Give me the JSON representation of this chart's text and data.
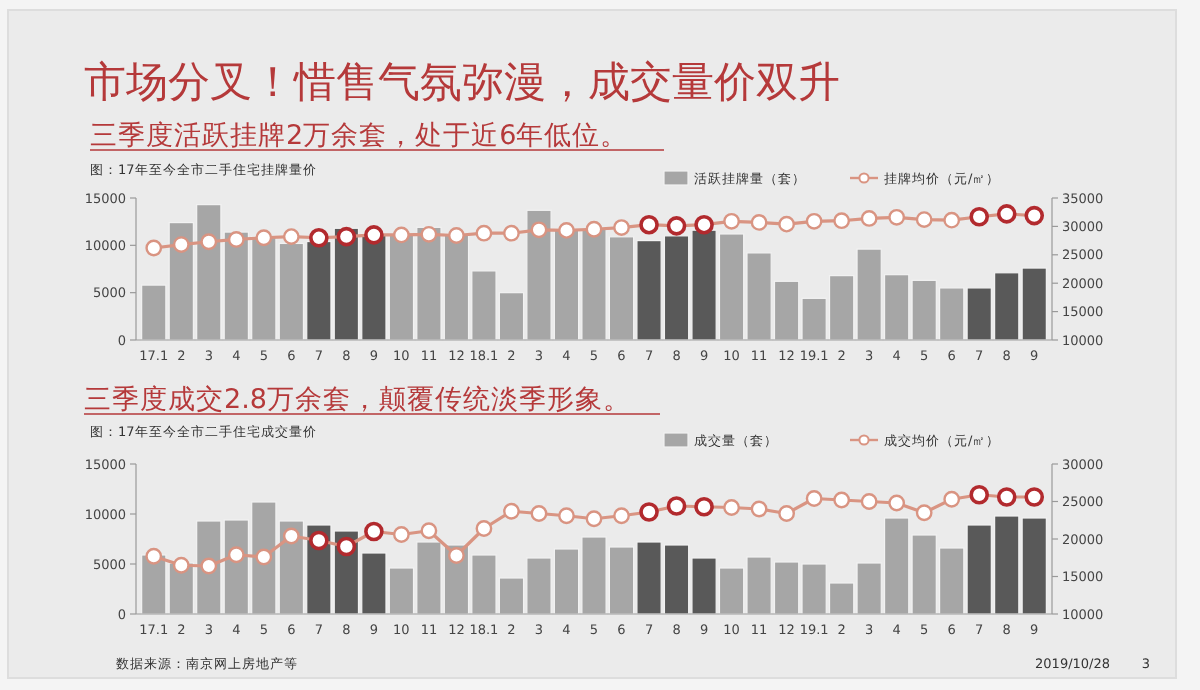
{
  "chart_data": [
    {
      "type": "bar",
      "title": "市场分叉！惜售气氛弥漫，成交量价双升",
      "subtitle": "三季度活跃挂牌2万余套，处于近6年低位。",
      "annotations": [
        "图：17年至今全市二手住宅挂牌量价"
      ],
      "categories": [
        "17.1",
        "2",
        "3",
        "4",
        "5",
        "6",
        "7",
        "8",
        "9",
        "10",
        "11",
        "12",
        "18.1",
        "2",
        "3",
        "4",
        "5",
        "6",
        "7",
        "8",
        "9",
        "10",
        "11",
        "12",
        "19.1",
        "2",
        "3",
        "4",
        "5",
        "6",
        "7",
        "8",
        "9"
      ],
      "ylim": [
        0,
        15000
      ],
      "yticks": [
        0,
        5000,
        10000,
        15000
      ],
      "y2lim": [
        10000,
        35000
      ],
      "y2ticks": [
        10000,
        15000,
        20000,
        25000,
        30000,
        35000
      ],
      "legend": "top right",
      "marker": "circle",
      "series": [
        {
          "name": "活跃挂牌量（套）",
          "color": "#a6a6a6",
          "colors": [
            "#a6a6a6",
            "#a6a6a6",
            "#a6a6a6",
            "#a6a6a6",
            "#a6a6a6",
            "#a6a6a6",
            "#595959",
            "#595959",
            "#595959",
            "#a6a6a6",
            "#a6a6a6",
            "#a6a6a6",
            "#a6a6a6",
            "#a6a6a6",
            "#a6a6a6",
            "#a6a6a6",
            "#a6a6a6",
            "#a6a6a6",
            "#595959",
            "#595959",
            "#595959",
            "#a6a6a6",
            "#a6a6a6",
            "#a6a6a6",
            "#a6a6a6",
            "#a6a6a6",
            "#a6a6a6",
            "#a6a6a6",
            "#a6a6a6",
            "#a6a6a6",
            "#595959",
            "#595959",
            "#595959"
          ],
          "values": [
            5800,
            12400,
            14300,
            11400,
            10900,
            10200,
            10400,
            11800,
            11200,
            11100,
            11900,
            11200,
            7300,
            5000,
            13700,
            11700,
            11700,
            10900,
            10500,
            11000,
            11600,
            11200,
            9200,
            6200,
            4400,
            6800,
            9600,
            6900,
            6300,
            5500,
            5500,
            7100,
            7600
          ]
        },
        {
          "name": "挂牌均价（元/㎡）",
          "type": "line",
          "axis": "y2",
          "color": "#d99482",
          "colors": [
            "#d99482",
            "#d99482",
            "#d99482",
            "#d99482",
            "#d99482",
            "#d99482",
            "#b22a2e",
            "#b22a2e",
            "#b22a2e",
            "#d99482",
            "#d99482",
            "#d99482",
            "#d99482",
            "#d99482",
            "#d99482",
            "#d99482",
            "#d99482",
            "#d99482",
            "#b22a2e",
            "#b22a2e",
            "#b22a2e",
            "#d99482",
            "#d99482",
            "#d99482",
            "#d99482",
            "#d99482",
            "#d99482",
            "#d99482",
            "#d99482",
            "#d99482",
            "#b22a2e",
            "#b22a2e",
            "#b22a2e"
          ],
          "values": [
            26200,
            26800,
            27300,
            27700,
            28000,
            28200,
            28000,
            28200,
            28500,
            28500,
            28600,
            28400,
            28800,
            28800,
            29400,
            29300,
            29500,
            29800,
            30300,
            30100,
            30300,
            30900,
            30700,
            30400,
            30900,
            31000,
            31400,
            31600,
            31200,
            31100,
            31700,
            32200,
            31900
          ]
        }
      ]
    },
    {
      "type": "bar",
      "title": "三季度成交2.8万余套，颠覆传统淡季形象。",
      "annotations": [
        "图：17年至今全市二手住宅成交量价",
        "数据来源：南京网上房地产等",
        "2019/10/28",
        "3"
      ],
      "categories": [
        "17.1",
        "2",
        "3",
        "4",
        "5",
        "6",
        "7",
        "8",
        "9",
        "10",
        "11",
        "12",
        "18.1",
        "2",
        "3",
        "4",
        "5",
        "6",
        "7",
        "8",
        "9",
        "10",
        "11",
        "12",
        "19.1",
        "2",
        "3",
        "4",
        "5",
        "6",
        "7",
        "8",
        "9"
      ],
      "ylim": [
        0,
        15000
      ],
      "yticks": [
        0,
        5000,
        10000,
        15000
      ],
      "y2lim": [
        10000,
        30000
      ],
      "y2ticks": [
        10000,
        15000,
        20000,
        25000,
        30000
      ],
      "legend": "top right",
      "marker": "circle",
      "series": [
        {
          "name": "成交量（套）",
          "color": "#a6a6a6",
          "colors": [
            "#a6a6a6",
            "#a6a6a6",
            "#a6a6a6",
            "#a6a6a6",
            "#a6a6a6",
            "#a6a6a6",
            "#595959",
            "#595959",
            "#595959",
            "#a6a6a6",
            "#a6a6a6",
            "#a6a6a6",
            "#a6a6a6",
            "#a6a6a6",
            "#a6a6a6",
            "#a6a6a6",
            "#a6a6a6",
            "#a6a6a6",
            "#595959",
            "#595959",
            "#595959",
            "#a6a6a6",
            "#a6a6a6",
            "#a6a6a6",
            "#a6a6a6",
            "#a6a6a6",
            "#a6a6a6",
            "#a6a6a6",
            "#a6a6a6",
            "#a6a6a6",
            "#595959",
            "#595959",
            "#595959"
          ],
          "values": [
            5900,
            5100,
            9300,
            9400,
            11200,
            9300,
            8900,
            8300,
            6100,
            4600,
            7200,
            6900,
            5900,
            3600,
            5600,
            6500,
            7700,
            6700,
            7200,
            6900,
            5600,
            4600,
            5700,
            5200,
            5000,
            3100,
            5100,
            9600,
            7900,
            6600,
            8900,
            9800,
            9600
          ]
        },
        {
          "name": "成交均价（元/㎡）",
          "type": "line",
          "axis": "y2",
          "color": "#d99482",
          "colors": [
            "#d99482",
            "#d99482",
            "#d99482",
            "#d99482",
            "#d99482",
            "#d99482",
            "#b22a2e",
            "#b22a2e",
            "#b22a2e",
            "#d99482",
            "#d99482",
            "#d99482",
            "#d99482",
            "#d99482",
            "#d99482",
            "#d99482",
            "#d99482",
            "#d99482",
            "#b22a2e",
            "#b22a2e",
            "#b22a2e",
            "#d99482",
            "#d99482",
            "#d99482",
            "#d99482",
            "#d99482",
            "#d99482",
            "#d99482",
            "#d99482",
            "#d99482",
            "#b22a2e",
            "#b22a2e",
            "#b22a2e"
          ],
          "values": [
            17700,
            16500,
            16400,
            17900,
            17600,
            20400,
            19800,
            19000,
            21000,
            20600,
            21100,
            17800,
            21400,
            23700,
            23400,
            23100,
            22700,
            23100,
            23600,
            24400,
            24300,
            24200,
            24000,
            23400,
            25400,
            25200,
            25000,
            24800,
            23500,
            25300,
            25900,
            25600,
            25600
          ]
        }
      ]
    }
  ]
}
